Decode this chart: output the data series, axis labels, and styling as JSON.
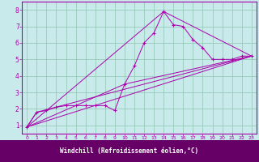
{
  "xlabel": "Windchill (Refroidissement éolien,°C)",
  "xlim": [
    -0.5,
    23.5
  ],
  "ylim": [
    0.5,
    8.5
  ],
  "xticks": [
    0,
    1,
    2,
    3,
    4,
    5,
    6,
    7,
    8,
    9,
    10,
    11,
    12,
    13,
    14,
    15,
    16,
    17,
    18,
    19,
    20,
    21,
    22,
    23
  ],
  "yticks": [
    1,
    2,
    3,
    4,
    5,
    6,
    7,
    8
  ],
  "background_color": "#c8eaeb",
  "plot_bg": "#c8eaeb",
  "line_color": "#aa00aa",
  "grid_color": "#99ccbb",
  "xlabel_bg": "#660066",
  "xlabel_fg": "#ffffff",
  "main_line": {
    "x": [
      0,
      1,
      2,
      3,
      4,
      5,
      6,
      7,
      8,
      9,
      10,
      11,
      12,
      13,
      14,
      15,
      16,
      17,
      18,
      19,
      20,
      21,
      22,
      23
    ],
    "y": [
      0.9,
      1.8,
      1.9,
      2.1,
      2.2,
      2.2,
      2.2,
      2.2,
      2.2,
      1.9,
      3.5,
      4.6,
      6.0,
      6.6,
      7.9,
      7.1,
      7.0,
      6.2,
      5.7,
      5.0,
      5.0,
      5.0,
      5.2,
      5.2
    ]
  },
  "straight_lines": [
    {
      "x": [
        0,
        23
      ],
      "y": [
        0.9,
        5.2
      ]
    },
    {
      "x": [
        0,
        1,
        23
      ],
      "y": [
        0.9,
        1.8,
        5.2
      ]
    },
    {
      "x": [
        0,
        10,
        23
      ],
      "y": [
        0.9,
        3.5,
        5.2
      ]
    },
    {
      "x": [
        0,
        14,
        23
      ],
      "y": [
        0.9,
        7.9,
        5.2
      ]
    }
  ]
}
